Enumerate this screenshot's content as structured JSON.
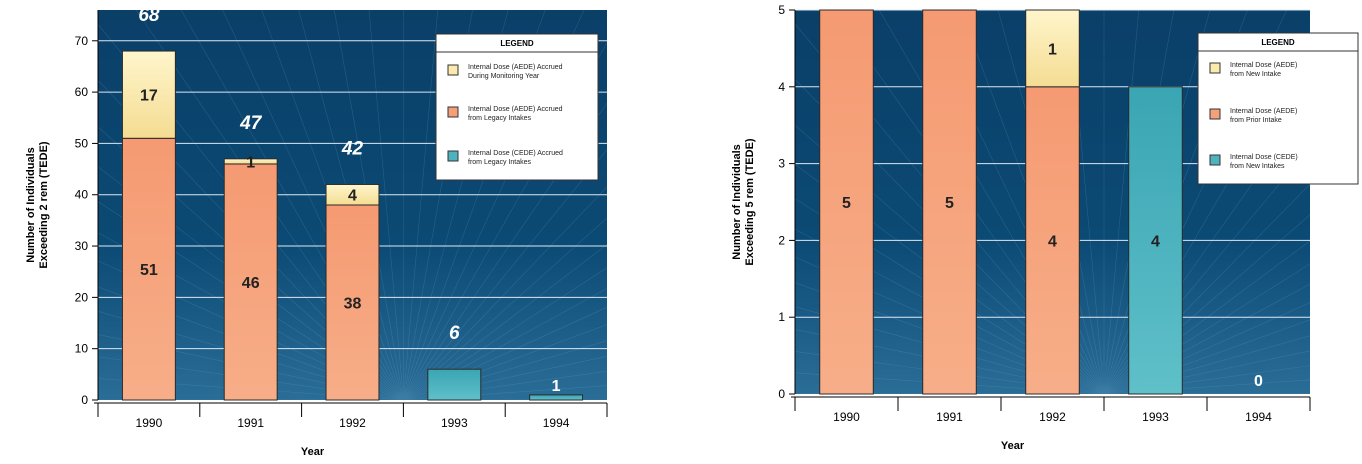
{
  "colors": {
    "bg_dark": "#073a63",
    "bg_light": "#2a6d97",
    "accrued": "#fbeaad",
    "legacy": "#f4a07a",
    "cede": "#4fb3bf",
    "total_label": "#ffffff",
    "segment_label": "#222222"
  },
  "chart_data": [
    {
      "type": "bar",
      "stacked": true,
      "title": "",
      "xlabel": "Year",
      "ylabel": [
        "Number of Individuals",
        "Exceeding 2 rem (TEDE)"
      ],
      "ylim": [
        0,
        76
      ],
      "yticks": [
        "0",
        "10",
        "20",
        "30",
        "40",
        "50",
        "60",
        "70"
      ],
      "grid": true,
      "legend_position": "top-right",
      "legend_title": "LEGEND",
      "categories": [
        "1990",
        "1991",
        "1992",
        "1993",
        "1994"
      ],
      "series": [
        {
          "name": [
            "Internal Dose (CEDE) Accrued",
            "from Legacy Intakes"
          ],
          "color_key": "cede",
          "values": [
            0,
            0,
            0,
            6,
            1
          ]
        },
        {
          "name": [
            "Internal Dose (AEDE) Accrued",
            "from Legacy Intakes"
          ],
          "color_key": "legacy",
          "values": [
            51,
            46,
            38,
            0,
            0
          ]
        },
        {
          "name": [
            "Internal Dose (AEDE) Accrued",
            "During Monitoring Year"
          ],
          "color_key": "accrued",
          "values": [
            17,
            1,
            4,
            0,
            0
          ]
        }
      ],
      "legend_order": [
        2,
        1,
        0
      ],
      "segment_labels": [
        {
          "category": 0,
          "series": 1,
          "text": "51"
        },
        {
          "category": 0,
          "series": 2,
          "text": "17"
        },
        {
          "category": 1,
          "series": 1,
          "text": "46"
        },
        {
          "category": 1,
          "series": 2,
          "text": "1"
        },
        {
          "category": 2,
          "series": 1,
          "text": "38"
        },
        {
          "category": 2,
          "series": 2,
          "text": "4"
        }
      ],
      "totals": [
        {
          "category": 0,
          "text": "68"
        },
        {
          "category": 1,
          "text": "47"
        },
        {
          "category": 2,
          "text": "42"
        },
        {
          "category": 3,
          "text": "6"
        },
        {
          "category": 4,
          "text": "1"
        }
      ]
    },
    {
      "type": "bar",
      "stacked": true,
      "title": "",
      "xlabel": "Year",
      "ylabel": [
        "Number of Individuals",
        "Exceeding 5 rem (TEDE)"
      ],
      "ylim": [
        0,
        5
      ],
      "yticks": [
        "0",
        "1",
        "2",
        "3",
        "4",
        "5"
      ],
      "grid": true,
      "legend_position": "top-right",
      "legend_title": "LEGEND",
      "categories": [
        "1990",
        "1991",
        "1992",
        "1993",
        "1994"
      ],
      "series": [
        {
          "name": [
            "Internal Dose (CEDE)",
            "from New Intakes"
          ],
          "color_key": "cede",
          "values": [
            0,
            0,
            0,
            4,
            0
          ]
        },
        {
          "name": [
            "Internal Dose (AEDE)",
            "from Prior Intake"
          ],
          "color_key": "legacy",
          "values": [
            5,
            5,
            4,
            0,
            0
          ]
        },
        {
          "name": [
            "Internal Dose (AEDE)",
            "from New Intake"
          ],
          "color_key": "accrued",
          "values": [
            0,
            0,
            1,
            0,
            0
          ]
        }
      ],
      "legend_order": [
        2,
        1,
        0
      ],
      "segment_labels": [
        {
          "category": 0,
          "series": 1,
          "text": "5"
        },
        {
          "category": 1,
          "series": 1,
          "text": "5"
        },
        {
          "category": 2,
          "series": 1,
          "text": "4"
        },
        {
          "category": 2,
          "series": 2,
          "text": "1"
        },
        {
          "category": 3,
          "series": 0,
          "text": "4"
        },
        {
          "category": 4,
          "series": 0,
          "text": "0"
        }
      ],
      "totals": []
    }
  ]
}
